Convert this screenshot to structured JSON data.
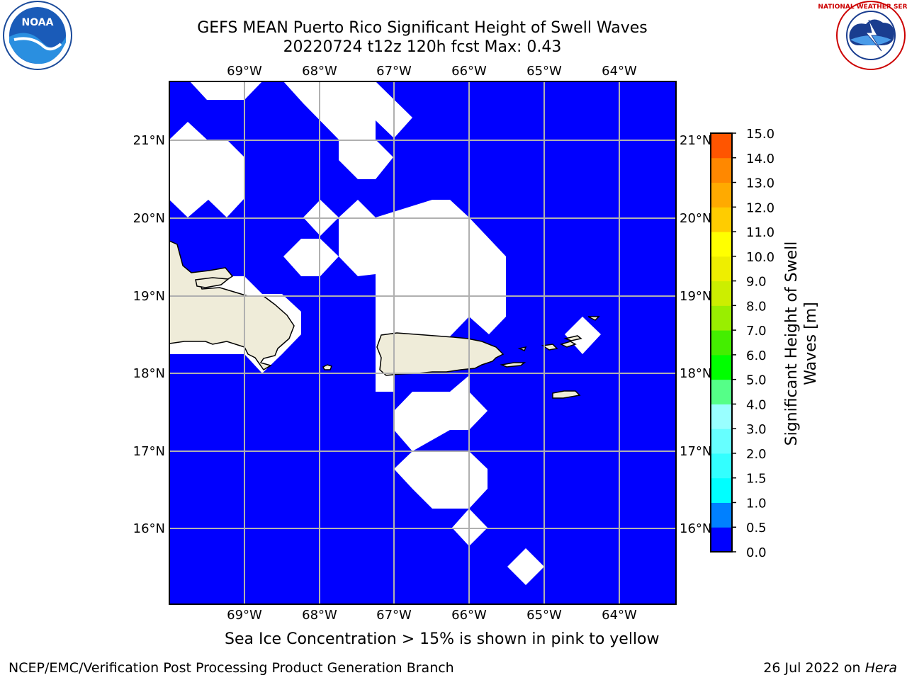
{
  "title_line1": "GEFS MEAN Puerto Rico Significant Height of Swell Waves",
  "title_line2": "20220724 t12z 120h fcst   Max: 0.43",
  "caption": "Sea Ice Concentration > 15% is shown in pink to yellow",
  "footer_left": "NCEP/EMC/Verification Post Processing Product Generation Branch",
  "footer_date": "26 Jul 2022 on ",
  "footer_host": "Hera",
  "logos": {
    "left": "NOAA",
    "right": "NATIONAL WEATHER SERVICE"
  },
  "map": {
    "lon_labels": [
      "69°W",
      "68°W",
      "67°W",
      "66°W",
      "65°W",
      "64°W"
    ],
    "lat_labels": [
      "21°N",
      "20°N",
      "19°N",
      "18°N",
      "17°N",
      "16°N"
    ],
    "ocean_color": "#0000ff",
    "land_color": "#efecd9",
    "masked_color": "#ffffff",
    "grid_color": "#b0b0b0"
  },
  "colorbar": {
    "label_line1": "Significant Height of Swell",
    "label_line2": "Waves [m]",
    "ticks": [
      "0.0",
      "0.5",
      "1.0",
      "1.5",
      "2.0",
      "3.0",
      "4.0",
      "5.0",
      "6.0",
      "7.0",
      "8.0",
      "9.0",
      "10.0",
      "11.0",
      "12.0",
      "13.0",
      "14.0",
      "15.0"
    ],
    "colors": [
      "#0000ff",
      "#0080ff",
      "#00ffff",
      "#33ffff",
      "#66ffff",
      "#99ffff",
      "#55ff88",
      "#00ff00",
      "#44ee00",
      "#99ee00",
      "#ccee00",
      "#eeee00",
      "#ffff00",
      "#ffcc00",
      "#ffaa00",
      "#ff8800",
      "#ff5500",
      "#ff2200",
      "#ff0000"
    ]
  }
}
